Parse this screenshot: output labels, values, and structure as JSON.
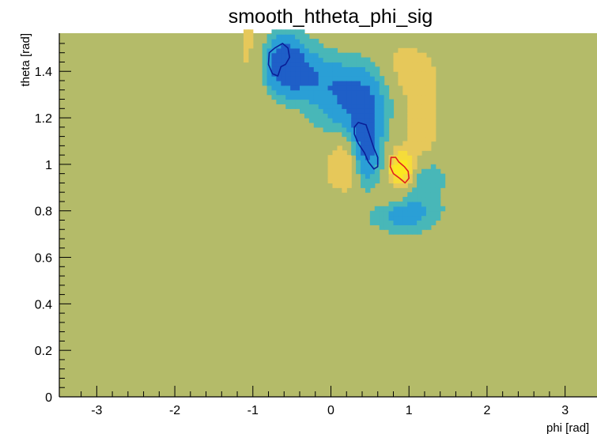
{
  "chart_data": {
    "type": "heatmap",
    "title": "smooth_htheta_phi_sig",
    "xlabel": "phi [rad]",
    "ylabel": "theta [rad]",
    "xlim": [
      -3.14,
      3.14
    ],
    "ylim": [
      0,
      1.57
    ],
    "x_ticks": [
      -3,
      -2,
      -1,
      0,
      1,
      2,
      3
    ],
    "x_tick_labels": [
      "-3",
      "-2",
      "-1",
      "0",
      "1",
      "2",
      "3"
    ],
    "y_ticks": [
      0,
      0.2,
      0.4,
      0.6,
      0.8,
      1.0,
      1.2,
      1.4
    ],
    "y_tick_labels": [
      "0",
      "0.2",
      "0.4",
      "0.6",
      "0.8",
      "1",
      "1.2",
      "1.4"
    ],
    "grid": false,
    "background_color": "#b4bb69",
    "colors": {
      "negative_strong": "#1f5fc8",
      "negative": "#2a9fd6",
      "negative_weak": "#48b7b8",
      "positive_weak": "#e6c85a",
      "positive": "#f5dc3a",
      "positive_strong": "#fce820",
      "contour_negative": "#0a1e96",
      "contour_positive": "#e0201e"
    },
    "blobs": [
      {
        "phi": -0.62,
        "theta": 1.44,
        "sphi": 0.22,
        "stheta": 0.09,
        "amp": -1.5
      },
      {
        "phi": -0.3,
        "theta": 1.38,
        "sphi": 0.3,
        "stheta": 0.07,
        "amp": -0.7
      },
      {
        "phi": 0.15,
        "theta": 1.28,
        "sphi": 0.28,
        "stheta": 0.1,
        "amp": -0.8
      },
      {
        "phi": 0.45,
        "theta": 1.1,
        "sphi": 0.13,
        "stheta": 0.13,
        "amp": -1.5
      },
      {
        "phi": 0.55,
        "theta": 1.32,
        "sphi": 0.3,
        "stheta": 0.1,
        "amp": -0.6
      },
      {
        "phi": 0.95,
        "theta": 0.8,
        "sphi": 0.28,
        "stheta": 0.06,
        "amp": -0.9
      },
      {
        "phi": 1.2,
        "theta": 0.95,
        "sphi": 0.18,
        "stheta": 0.07,
        "amp": -0.6
      },
      {
        "phi": -0.95,
        "theta": 1.45,
        "sphi": 0.2,
        "stheta": 0.15,
        "amp": 0.5
      },
      {
        "phi": 0.9,
        "theta": 1.38,
        "sphi": 0.3,
        "stheta": 0.1,
        "amp": 0.55
      },
      {
        "phi": 0.2,
        "theta": 1.0,
        "sphi": 0.18,
        "stheta": 0.08,
        "amp": 0.65
      },
      {
        "phi": 0.9,
        "theta": 0.98,
        "sphi": 0.1,
        "stheta": 0.05,
        "amp": 1.5
      },
      {
        "phi": 0.75,
        "theta": 0.85,
        "sphi": 0.25,
        "stheta": 0.04,
        "amp": 0.45
      },
      {
        "phi": 1.15,
        "theta": 1.1,
        "sphi": 0.15,
        "stheta": 0.15,
        "amp": 0.45
      }
    ],
    "contours": [
      {
        "sign": "negative",
        "points": [
          [
            -0.8,
            1.43
          ],
          [
            -0.79,
            1.48
          ],
          [
            -0.72,
            1.5
          ],
          [
            -0.62,
            1.52
          ],
          [
            -0.55,
            1.5
          ],
          [
            -0.53,
            1.46
          ],
          [
            -0.58,
            1.43
          ],
          [
            -0.64,
            1.42
          ],
          [
            -0.68,
            1.38
          ],
          [
            -0.75,
            1.39
          ]
        ]
      },
      {
        "sign": "negative",
        "points": [
          [
            0.3,
            1.16
          ],
          [
            0.35,
            1.18
          ],
          [
            0.45,
            1.17
          ],
          [
            0.5,
            1.12
          ],
          [
            0.55,
            1.07
          ],
          [
            0.6,
            1.03
          ],
          [
            0.6,
            0.99
          ],
          [
            0.55,
            0.98
          ],
          [
            0.48,
            1.01
          ],
          [
            0.43,
            1.05
          ],
          [
            0.35,
            1.09
          ],
          [
            0.3,
            1.13
          ]
        ]
      },
      {
        "sign": "positive",
        "points": [
          [
            0.77,
            1.03
          ],
          [
            0.83,
            1.03
          ],
          [
            0.87,
            1.01
          ],
          [
            0.94,
            0.99
          ],
          [
            0.99,
            0.97
          ],
          [
            1.0,
            0.94
          ],
          [
            0.95,
            0.92
          ],
          [
            0.88,
            0.94
          ],
          [
            0.8,
            0.96
          ],
          [
            0.76,
            0.99
          ]
        ]
      }
    ]
  }
}
